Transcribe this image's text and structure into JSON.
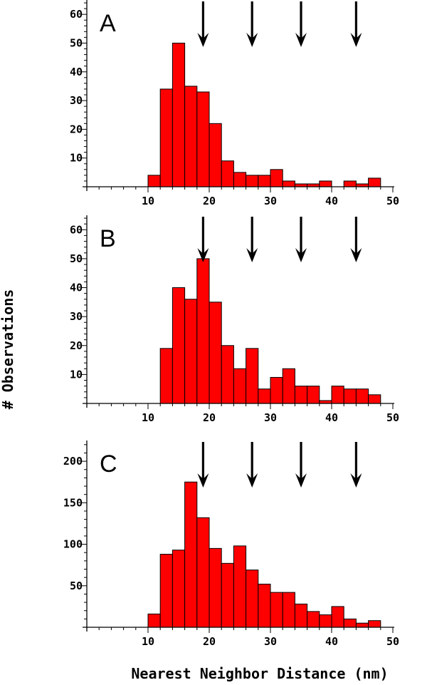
{
  "figure": {
    "ylabel": "# Observations",
    "xlabel": "Nearest Neighbor Distance (nm)"
  },
  "chart_data": [
    {
      "type": "bar",
      "panel_label": "A",
      "x_bin_starts": [
        10,
        12,
        14,
        16,
        18,
        20,
        22,
        24,
        26,
        28,
        30,
        32,
        34,
        36,
        38,
        40,
        42,
        44,
        46,
        48
      ],
      "bin_width": 2,
      "values": [
        4,
        34,
        50,
        35,
        33,
        22,
        9,
        5,
        4,
        4,
        6,
        2,
        1,
        1,
        2,
        0,
        2,
        1,
        3,
        0
      ],
      "xlim": [
        0,
        50
      ],
      "ylim": [
        0,
        65
      ],
      "xticks": [
        10,
        20,
        30,
        40,
        50
      ],
      "yticks": [
        10,
        20,
        30,
        40,
        50,
        60
      ],
      "arrows_at": [
        19,
        27,
        35,
        44
      ],
      "bar_color": "#ff0000"
    },
    {
      "type": "bar",
      "panel_label": "B",
      "x_bin_starts": [
        12,
        14,
        16,
        18,
        20,
        22,
        24,
        26,
        28,
        30,
        32,
        34,
        36,
        38,
        40,
        42,
        44,
        46,
        48
      ],
      "bin_width": 2,
      "values": [
        19,
        40,
        36,
        50,
        35,
        20,
        12,
        19,
        5,
        9,
        12,
        6,
        6,
        1,
        6,
        5,
        5,
        3,
        0
      ],
      "xlim": [
        0,
        50
      ],
      "ylim": [
        0,
        65
      ],
      "xticks": [
        10,
        20,
        30,
        40,
        50
      ],
      "yticks": [
        10,
        20,
        30,
        40,
        50,
        60
      ],
      "arrows_at": [
        19,
        27,
        35,
        44
      ],
      "bar_color": "#ff0000"
    },
    {
      "type": "bar",
      "panel_label": "C",
      "x_bin_starts": [
        10,
        12,
        14,
        16,
        18,
        20,
        22,
        24,
        26,
        28,
        30,
        32,
        34,
        36,
        38,
        40,
        42,
        44,
        46,
        48
      ],
      "bin_width": 2,
      "values": [
        16,
        88,
        93,
        175,
        132,
        95,
        77,
        98,
        69,
        52,
        42,
        42,
        28,
        19,
        15,
        25,
        10,
        5,
        8,
        0
      ],
      "xlim": [
        0,
        50
      ],
      "ylim": [
        0,
        225
      ],
      "xticks": [
        10,
        20,
        30,
        40,
        50
      ],
      "yticks": [
        50,
        100,
        150,
        200
      ],
      "arrows_at": [
        19,
        27,
        35,
        44
      ],
      "bar_color": "#ff0000"
    }
  ]
}
